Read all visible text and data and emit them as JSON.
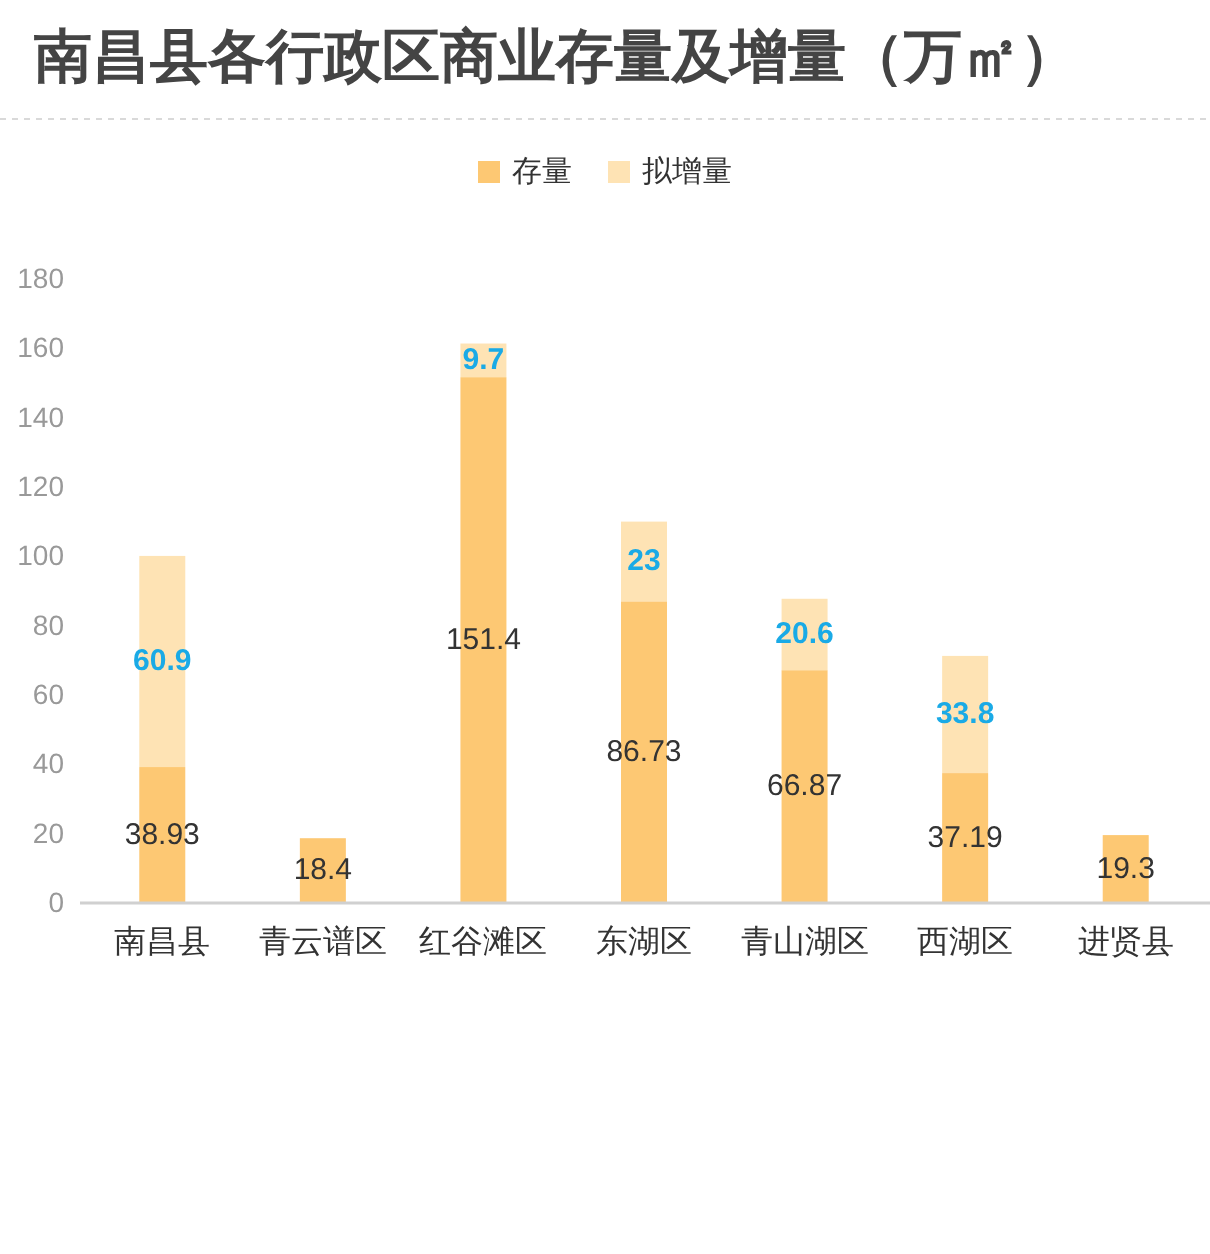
{
  "chart_data": {
    "type": "bar",
    "title": "南昌县各行政区商业存量及增量（万㎡）",
    "legend": "top",
    "stacked": true,
    "data_labels": true,
    "categories": [
      "南昌县",
      "青云谱区",
      "红谷滩区",
      "东湖区",
      "青山湖区",
      "西湖区",
      "进贤县"
    ],
    "series": [
      {
        "name": "存量",
        "color": "#fdc873",
        "values": [
          38.93,
          18.4,
          151.4,
          86.73,
          66.87,
          37.19,
          19.3
        ]
      },
      {
        "name": "拟增量",
        "color": "#fee3b4",
        "values": [
          60.9,
          null,
          9.7,
          23,
          20.6,
          33.8,
          null
        ]
      }
    ],
    "ylim": [
      0,
      180
    ],
    "yticks": [
      0,
      20,
      40,
      60,
      80,
      100,
      120,
      140,
      160,
      180
    ]
  }
}
